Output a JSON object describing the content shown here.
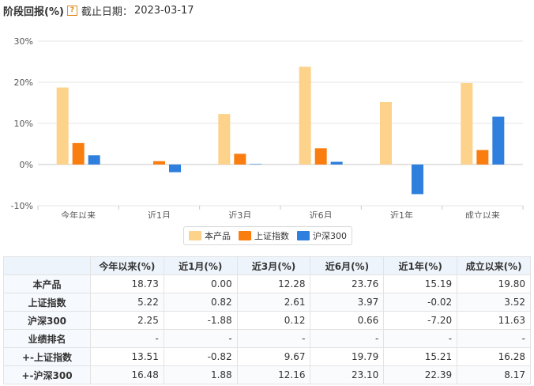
{
  "header": {
    "title": "阶段回报(%)",
    "help_glyph": "?",
    "deadline_label": "截止日期：",
    "deadline_date": "2023-03-17"
  },
  "colors": {
    "product": "#fdd28a",
    "sse": "#fa7d0f",
    "csi300": "#2f7fde"
  },
  "chart_data": {
    "type": "bar",
    "categories": [
      "今年以来",
      "近1月",
      "近3月",
      "近6月",
      "近1年",
      "成立以来"
    ],
    "series": [
      {
        "name": "本产品",
        "values": [
          18.73,
          0.0,
          12.28,
          23.76,
          15.19,
          19.8
        ]
      },
      {
        "name": "上证指数",
        "values": [
          5.22,
          0.82,
          2.61,
          3.97,
          -0.02,
          3.52
        ]
      },
      {
        "name": "沪深300",
        "values": [
          2.25,
          -1.88,
          0.12,
          0.66,
          -7.2,
          11.63
        ]
      }
    ],
    "ylim": [
      -10,
      30
    ],
    "yticks": [
      30,
      20,
      10,
      0,
      -10
    ],
    "ytick_labels": [
      "30%",
      "20%",
      "10%",
      "0%",
      "-10%"
    ],
    "grid": true,
    "legend": "bottom-center"
  },
  "table": {
    "headers": [
      "",
      "今年以来(%)",
      "近1月(%)",
      "近3月(%)",
      "近6月(%)",
      "近1年(%)",
      "成立以来(%)"
    ],
    "rows": [
      {
        "label": "本产品",
        "values": [
          "18.73",
          "0.00",
          "12.28",
          "23.76",
          "15.19",
          "19.80"
        ]
      },
      {
        "label": "上证指数",
        "values": [
          "5.22",
          "0.82",
          "2.61",
          "3.97",
          "-0.02",
          "3.52"
        ]
      },
      {
        "label": "沪深300",
        "values": [
          "2.25",
          "-1.88",
          "0.12",
          "0.66",
          "-7.20",
          "11.63"
        ]
      },
      {
        "label": "业绩排名",
        "values": [
          "-",
          "-",
          "-",
          "-",
          "-",
          "-"
        ]
      },
      {
        "label": "+-上证指数",
        "values": [
          "13.51",
          "-0.82",
          "9.67",
          "19.79",
          "15.21",
          "16.28"
        ]
      },
      {
        "label": "+-沪深300",
        "values": [
          "16.48",
          "1.88",
          "12.16",
          "23.10",
          "22.39",
          "8.17"
        ]
      }
    ]
  }
}
